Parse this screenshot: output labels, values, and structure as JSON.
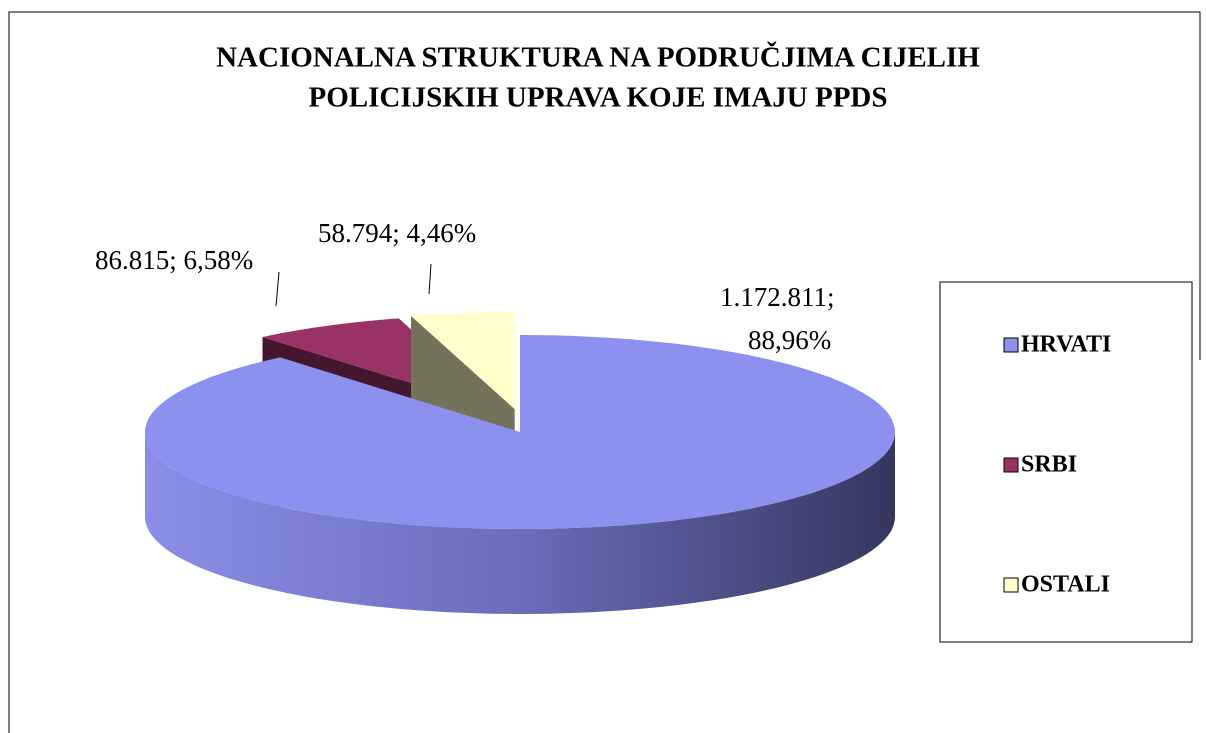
{
  "chart_data": {
    "type": "pie3d",
    "title": [
      "NACIONALNA STRUKTURA NA PODRUČJIMA CIJELIH",
      "POLICIJSKIH UPRAVA KOJE IMAJU PPDS"
    ],
    "categories": [
      "HRVATI",
      "SRBI",
      "OSTALI"
    ],
    "values": [
      1172811,
      86815,
      58794
    ],
    "value_labels": [
      "1.172.811; 88,96%",
      "86.815; 6,58%",
      "58.794; 4,46%"
    ],
    "colors": [
      "#8c90ee",
      "#993366",
      "#ffffcc"
    ],
    "legend": "right"
  }
}
